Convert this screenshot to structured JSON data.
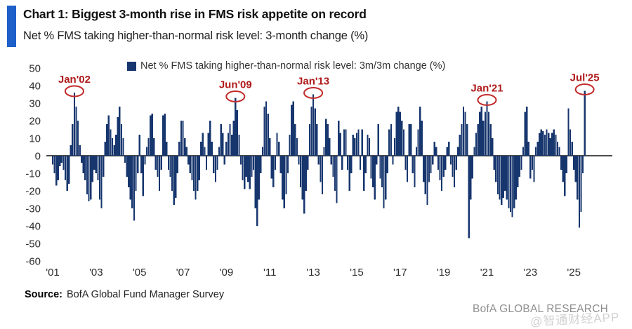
{
  "header": {
    "title": "Chart 1: Biggest 3-month rise in FMS risk appetite on record",
    "subtitle": "Net % FMS taking higher-than-normal risk level: 3-month change (%)"
  },
  "legend": {
    "label": "Net % FMS taking higher-than-normal risk level: 3m/3m change (%)"
  },
  "footer": {
    "source_label": "Source:",
    "source_text": "BofA Global Fund Manager Survey",
    "branding": "BofA GLOBAL RESEARCH",
    "watermark": "@智通财经APP"
  },
  "colors": {
    "accent_blue": "#1e5fc9",
    "bar_navy": "#17366e",
    "annotation_red": "#b01b1b",
    "ellipse_red": "#c22b2b",
    "axis_black": "#111111",
    "tick_gray": "#2b2b2b",
    "branding_gray": "#8f8f8f",
    "watermark_gray": "#c6c6c6"
  },
  "chart_data": {
    "type": "bar",
    "title": "Net % FMS taking higher-than-normal risk level: 3-month change (%)",
    "series_name": "Net % FMS taking higher-than-normal risk level: 3m/3m change (%)",
    "frequency": "monthly",
    "x_start": "2001-01",
    "x_end": "2025-07",
    "ylim": [
      -60,
      50
    ],
    "grid": false,
    "legend_position": "top",
    "yticks": [
      50,
      40,
      30,
      20,
      10,
      0,
      -10,
      -20,
      -30,
      -40,
      -50,
      -60
    ],
    "xticks": [
      "'01",
      "'03",
      "'05",
      "'07",
      "'09",
      "'11",
      "'13",
      "'15",
      "'17",
      "'19",
      "'21",
      "'23",
      "'25"
    ],
    "values": [
      -5,
      -10,
      -17,
      -14,
      -6,
      -4,
      -8,
      -14,
      -20,
      -16,
      6,
      18,
      36,
      28,
      20,
      6,
      -4,
      -10,
      -14,
      -22,
      -26,
      -25,
      -15,
      -8,
      -10,
      -14,
      -25,
      -30,
      -12,
      8,
      18,
      23,
      15,
      10,
      6,
      12,
      22,
      28,
      18,
      10,
      -4,
      -12,
      -18,
      -25,
      -30,
      -37,
      -20,
      -10,
      12,
      -10,
      -23,
      -5,
      5,
      10,
      23,
      24,
      10,
      -8,
      -12,
      -20,
      -8,
      23,
      24,
      8,
      -8,
      -12,
      -20,
      -28,
      -24,
      -10,
      8,
      20,
      20,
      10,
      5,
      -5,
      -10,
      -14,
      -20,
      -25,
      -20,
      -14,
      8,
      13,
      5,
      -8,
      13,
      20,
      8,
      -10,
      -15,
      -8,
      5,
      18,
      13,
      -5,
      8,
      13,
      18,
      12,
      20,
      33,
      26,
      12,
      -5,
      -14,
      -19,
      -12,
      -15,
      -19,
      -12,
      -8,
      -30,
      -40,
      -25,
      -10,
      5,
      28,
      31,
      24,
      10,
      -13,
      -18,
      -8,
      13,
      8,
      -10,
      -25,
      -30,
      -22,
      -10,
      12,
      29,
      31,
      18,
      10,
      -5,
      -18,
      -25,
      -33,
      -20,
      -8,
      18,
      28,
      35,
      27,
      18,
      -5,
      -15,
      -22,
      5,
      21,
      18,
      10,
      -5,
      -12,
      -20,
      -27,
      20,
      13,
      -8,
      15,
      15,
      -8,
      -20,
      -10,
      12,
      10,
      13,
      15,
      -8,
      15,
      -20,
      -10,
      12,
      10,
      -13,
      -18,
      -25,
      -5,
      18,
      -13,
      -18,
      -30,
      -25,
      -10,
      15,
      18,
      -5,
      10,
      25,
      28,
      25,
      20,
      15,
      -8,
      -15,
      18,
      18,
      -10,
      -18,
      5,
      15,
      28,
      20,
      -15,
      -22,
      -28,
      -15,
      -10,
      -5,
      8,
      5,
      -8,
      -14,
      -20,
      -12,
      -8,
      5,
      8,
      -5,
      -12,
      -18,
      -8,
      5,
      12,
      18,
      28,
      25,
      18,
      -47,
      -25,
      -13,
      5,
      13,
      18,
      25,
      28,
      20,
      25,
      31,
      25,
      18,
      10,
      -8,
      -15,
      -22,
      -25,
      -28,
      -24,
      -20,
      -25,
      -30,
      -32,
      -35,
      -30,
      -25,
      -18,
      -12,
      -8,
      5,
      25,
      28,
      8,
      -13,
      -8,
      -15,
      5,
      8,
      13,
      15,
      14,
      12,
      15,
      13,
      10,
      13,
      15,
      12,
      8,
      5,
      -8,
      -15,
      -23,
      -10,
      27,
      15,
      8,
      -8,
      -15,
      -25,
      -41,
      -32,
      -10,
      37
    ],
    "annotations": [
      {
        "label": "Jan'02",
        "index": 12,
        "value": 36
      },
      {
        "label": "Jun'09",
        "index": 101,
        "value": 33
      },
      {
        "label": "Jan'13",
        "index": 144,
        "value": 35
      },
      {
        "label": "Jan'21",
        "index": 240,
        "value": 31
      },
      {
        "label": "Jul'25",
        "index": 294,
        "value": 37
      }
    ]
  }
}
